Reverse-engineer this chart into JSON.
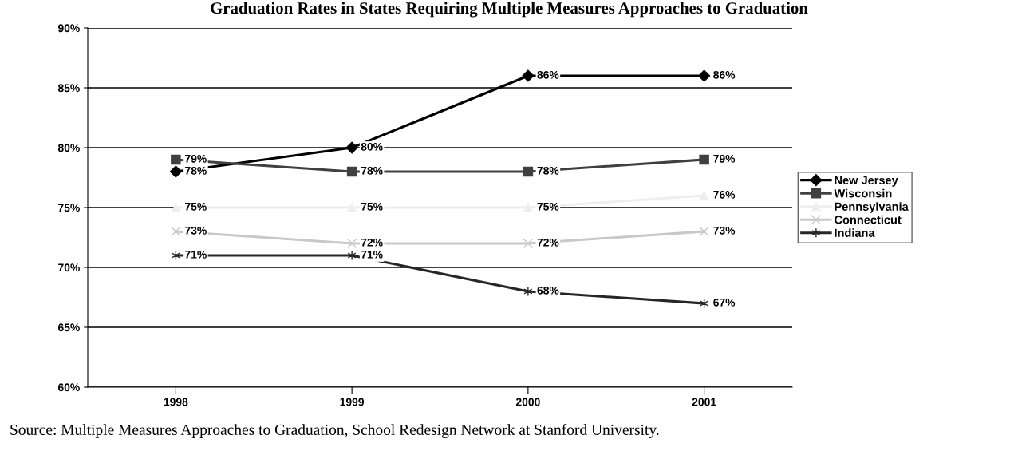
{
  "chart_data": {
    "type": "line",
    "title": "Graduation Rates in States Requiring Multiple Measures Approaches to Graduation",
    "categories": [
      "1998",
      "1999",
      "2000",
      "2001"
    ],
    "series": [
      {
        "name": "New Jersey",
        "color": "#000000",
        "marker": "diamond",
        "values": [
          78,
          80,
          86,
          86
        ],
        "value_labels": [
          "78%",
          "80%",
          "86%",
          "86%"
        ]
      },
      {
        "name": "Wisconsin",
        "color": "#404040",
        "marker": "square",
        "values": [
          79,
          78,
          78,
          79
        ],
        "value_labels": [
          "79%",
          "78%",
          "78%",
          "79%"
        ]
      },
      {
        "name": "Pennsylvania",
        "color": "#eeeeee",
        "marker": "triangle",
        "values": [
          75,
          75,
          75,
          76
        ],
        "value_labels": [
          "75%",
          "75%",
          "75%",
          "76%"
        ]
      },
      {
        "name": "Connecticut",
        "color": "#c8c8c8",
        "marker": "cross",
        "values": [
          73,
          72,
          72,
          73
        ],
        "value_labels": [
          "73%",
          "72%",
          "72%",
          "73%"
        ]
      },
      {
        "name": "Indiana",
        "color": "#262626",
        "marker": "cross",
        "values": [
          71,
          71,
          68,
          67
        ],
        "value_labels": [
          "71%",
          "71%",
          "68%",
          "67%"
        ]
      }
    ],
    "ylim": [
      60,
      90
    ],
    "yticks": [
      {
        "value": 60,
        "label": "60%"
      },
      {
        "value": 65,
        "label": "65%"
      },
      {
        "value": 70,
        "label": "70%"
      },
      {
        "value": 75,
        "label": "75%"
      },
      {
        "value": 80,
        "label": "80%"
      },
      {
        "value": 85,
        "label": "85%"
      },
      {
        "value": 90,
        "label": "90%"
      }
    ],
    "grid": "y",
    "legend": "right",
    "annotations": [
      "Source: Multiple Measures Approaches to Graduation, School Redesign Network at Stanford University."
    ]
  }
}
